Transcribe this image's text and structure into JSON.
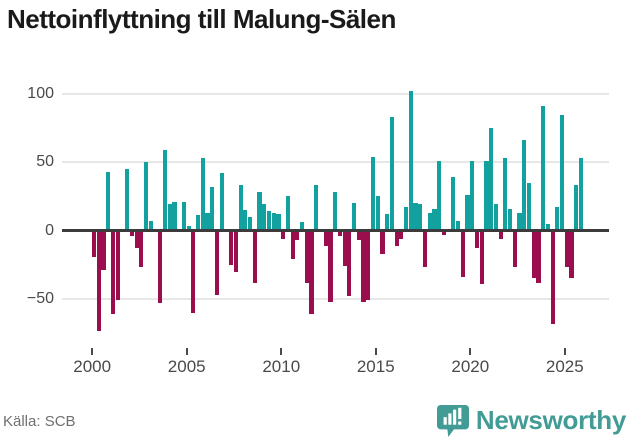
{
  "title": "Nettoinflyttning till Malung-Sälen",
  "source": "Källa: SCB",
  "brand": {
    "name": "Newsworthy",
    "logo_icon": "speech-bubble-bar-chart-icon"
  },
  "colors": {
    "positive_bar": "#12a19e",
    "negative_bar": "#9b0e4e",
    "axis_line": "#3b3b3b",
    "gridline": "#e7e7e7",
    "tick_text": "#4a4a4a",
    "title_text": "#1a1a1a",
    "source_text": "#707070",
    "brand_teal": "#429c95"
  },
  "chart_data": {
    "type": "bar",
    "title": "Nettoinflyttning till Malung-Sälen",
    "xlabel": "",
    "ylabel": "",
    "x_unit": "quarter",
    "x_start": "2000 Q1",
    "x_end": "2025 Q4",
    "x_tick_labels": [
      "2000",
      "2005",
      "2010",
      "2015",
      "2020",
      "2025"
    ],
    "x_tick_years": [
      2000,
      2005,
      2010,
      2015,
      2020,
      2025
    ],
    "y_tick_labels": [
      "100",
      "50",
      "0",
      "−50"
    ],
    "y_ticks": [
      100,
      50,
      0,
      -50
    ],
    "ylim": [
      -80,
      110
    ],
    "grid": true,
    "legend": "none",
    "series_note": "quarterly net migration; positive teal, negative maroon",
    "values": [
      -19,
      -73,
      -29,
      43,
      -61,
      -51,
      0,
      45,
      -4,
      -13,
      -27,
      50,
      7,
      0,
      -53,
      59,
      19,
      21,
      0,
      21,
      3,
      -60,
      11,
      53,
      13,
      32,
      -47,
      42,
      0,
      -25,
      -30,
      33,
      15,
      10,
      -38,
      28,
      19,
      14,
      13,
      12,
      -6,
      25,
      -21,
      -7,
      6,
      -38,
      -61,
      33,
      0,
      -11,
      -52,
      28,
      -4,
      -26,
      -48,
      20,
      -7,
      -52,
      -51,
      54,
      25,
      -17,
      12,
      83,
      -11,
      -6,
      17,
      102,
      20,
      19,
      -27,
      13,
      16,
      51,
      -3,
      0,
      39,
      7,
      -34,
      26,
      51,
      -13,
      -39,
      51,
      75,
      19,
      -6,
      53,
      16,
      -27,
      13,
      66,
      35,
      -35,
      -38,
      91,
      5,
      -68,
      17,
      84,
      -27,
      -35,
      33,
      53
    ]
  }
}
